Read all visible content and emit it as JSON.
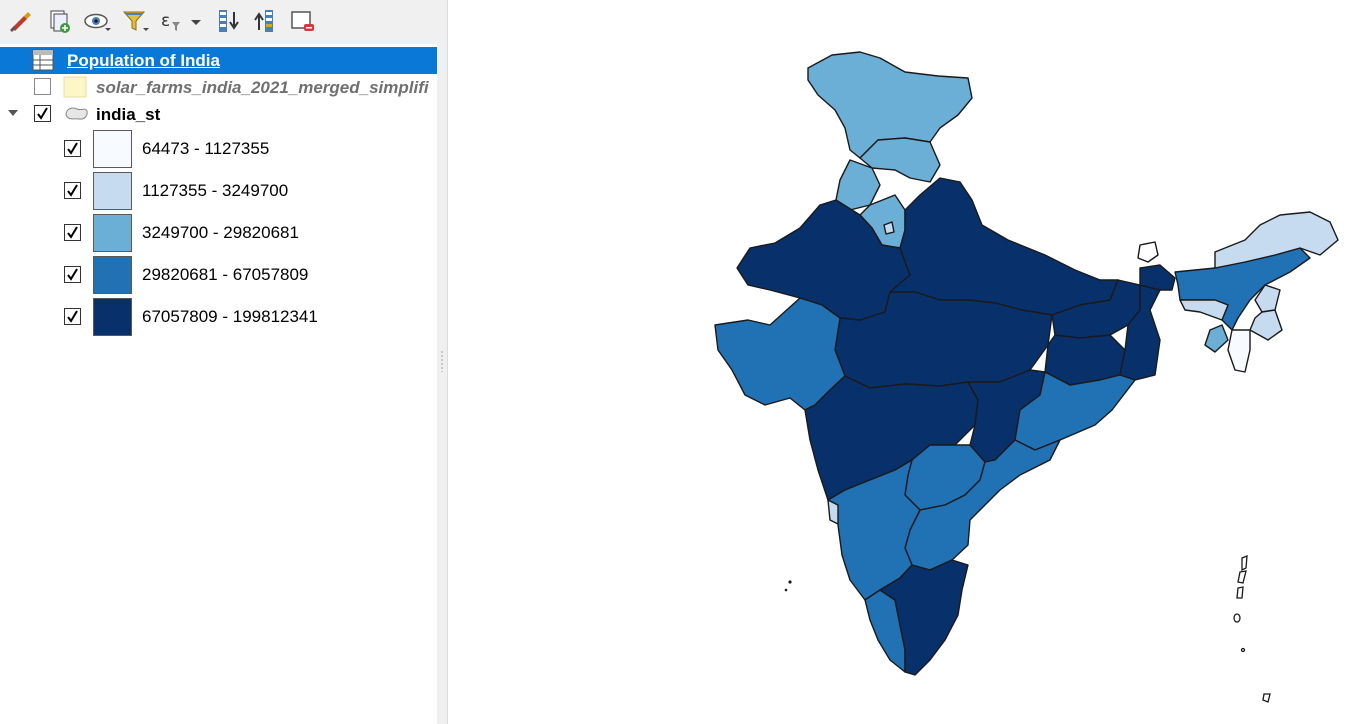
{
  "toolbar": {
    "buttons": [
      {
        "name": "open-layer-styling-icon"
      },
      {
        "name": "add-group-icon"
      },
      {
        "name": "manage-map-themes-icon"
      },
      {
        "name": "filter-legend-icon"
      },
      {
        "name": "filter-by-expression-icon"
      },
      {
        "name": "expand-all-icon"
      },
      {
        "name": "collapse-all-icon"
      },
      {
        "name": "remove-layer-icon"
      }
    ]
  },
  "layers": {
    "table_layer": {
      "label": "Population of India",
      "icon": "table-icon",
      "selected": true
    },
    "solar_layer": {
      "label": "solar_farms_india_2021_merged_simplifi",
      "icon": "polygon-icon",
      "checked": false,
      "swatch_color": "#fdf6c6"
    },
    "states_layer": {
      "label": "india_st",
      "icon": "polygon-icon",
      "checked": true,
      "expanded": true
    }
  },
  "legend": {
    "classes": [
      {
        "label": "64473 - 1127355",
        "color": "#f7fbff",
        "checked": true
      },
      {
        "label": "1127355 - 3249700",
        "color": "#c6dbef",
        "checked": true
      },
      {
        "label": "3249700 - 29820681",
        "color": "#6baed6",
        "checked": true
      },
      {
        "label": "29820681 - 67057809",
        "color": "#2171b5",
        "checked": true
      },
      {
        "label": "67057809 - 199812341",
        "color": "#08306b",
        "checked": true
      }
    ]
  },
  "colors": {
    "selection_blue": "#0a78d7",
    "toolbar_bg": "#f0f0f0",
    "outline": "#1a1a1a"
  }
}
